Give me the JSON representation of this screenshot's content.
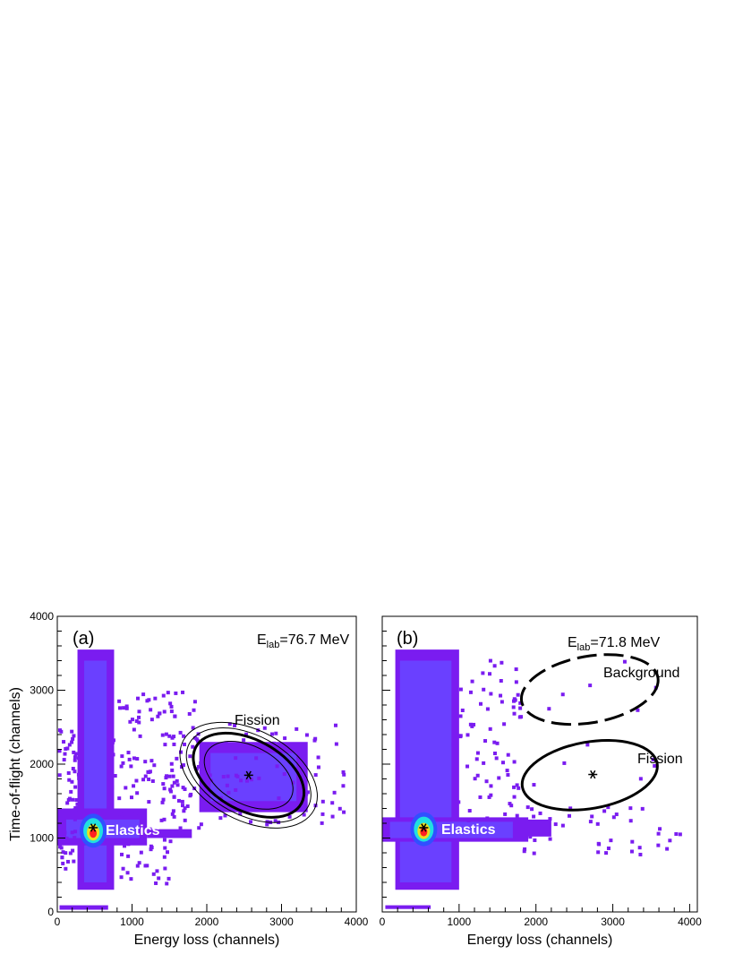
{
  "chart_data": [
    {
      "type": "heatmap",
      "panel_label": "(a)",
      "energy_label": {
        "main": "E",
        "sub": "lab",
        "value": "=76.7 MeV"
      },
      "xlabel": "Energy loss (channels)",
      "ylabel": "Time-of-flight (channels)",
      "xlim": [
        0,
        4000
      ],
      "ylim": [
        0,
        4000
      ],
      "xticks": [
        "0",
        "1000",
        "2000",
        "3000",
        "4000"
      ],
      "yticks": [
        "0",
        "1000",
        "2000",
        "3000",
        "4000"
      ],
      "regions": [
        {
          "name": "Elastics",
          "center": [
            480,
            1130
          ]
        },
        {
          "name": "Fission",
          "center": [
            2560,
            1850
          ]
        }
      ],
      "gates": [
        {
          "label": "Fission",
          "style": "solid-thick",
          "center": [
            2560,
            1850
          ],
          "rx": 800,
          "ry": 480,
          "angle_deg": 28
        },
        {
          "label": "",
          "style": "solid-thin",
          "center": [
            2560,
            1850
          ],
          "rx": 640,
          "ry": 390,
          "angle_deg": 28
        },
        {
          "label": "",
          "style": "solid-thin",
          "center": [
            2560,
            1850
          ],
          "rx": 900,
          "ry": 540,
          "angle_deg": 28
        },
        {
          "label": "",
          "style": "solid-thin",
          "center": [
            2560,
            1850
          ],
          "rx": 990,
          "ry": 610,
          "angle_deg": 28
        }
      ]
    },
    {
      "type": "heatmap",
      "panel_label": "(b)",
      "energy_label": {
        "main": "E",
        "sub": "lab",
        "value": "=71.8 MeV"
      },
      "xlabel": "Energy loss (channels)",
      "ylabel": "",
      "xlim": [
        0,
        4100
      ],
      "ylim": [
        0,
        4000
      ],
      "xticks": [
        "0",
        "1000",
        "2000",
        "3000",
        "4000"
      ],
      "yticks": [],
      "regions": [
        {
          "name": "Elastics",
          "center": [
            540,
            1130
          ]
        },
        {
          "name": "Background",
          "center": [
            2700,
            3000
          ]
        },
        {
          "name": "Fission",
          "center": [
            2700,
            1850
          ]
        }
      ],
      "gates": [
        {
          "label": "Background",
          "style": "dashed-thick",
          "center": [
            2700,
            3010
          ],
          "rx": 900,
          "ry": 450,
          "angle_deg": -10
        },
        {
          "label": "Fission",
          "style": "solid-thick",
          "center": [
            2700,
            1850
          ],
          "rx": 890,
          "ry": 450,
          "angle_deg": -10
        }
      ]
    }
  ],
  "colors": {
    "scatter": "#7a1cf0",
    "core": "#6a40ff",
    "hot": "#ff2020",
    "mid": "#20e0e0",
    "warm": "#e8e020"
  }
}
